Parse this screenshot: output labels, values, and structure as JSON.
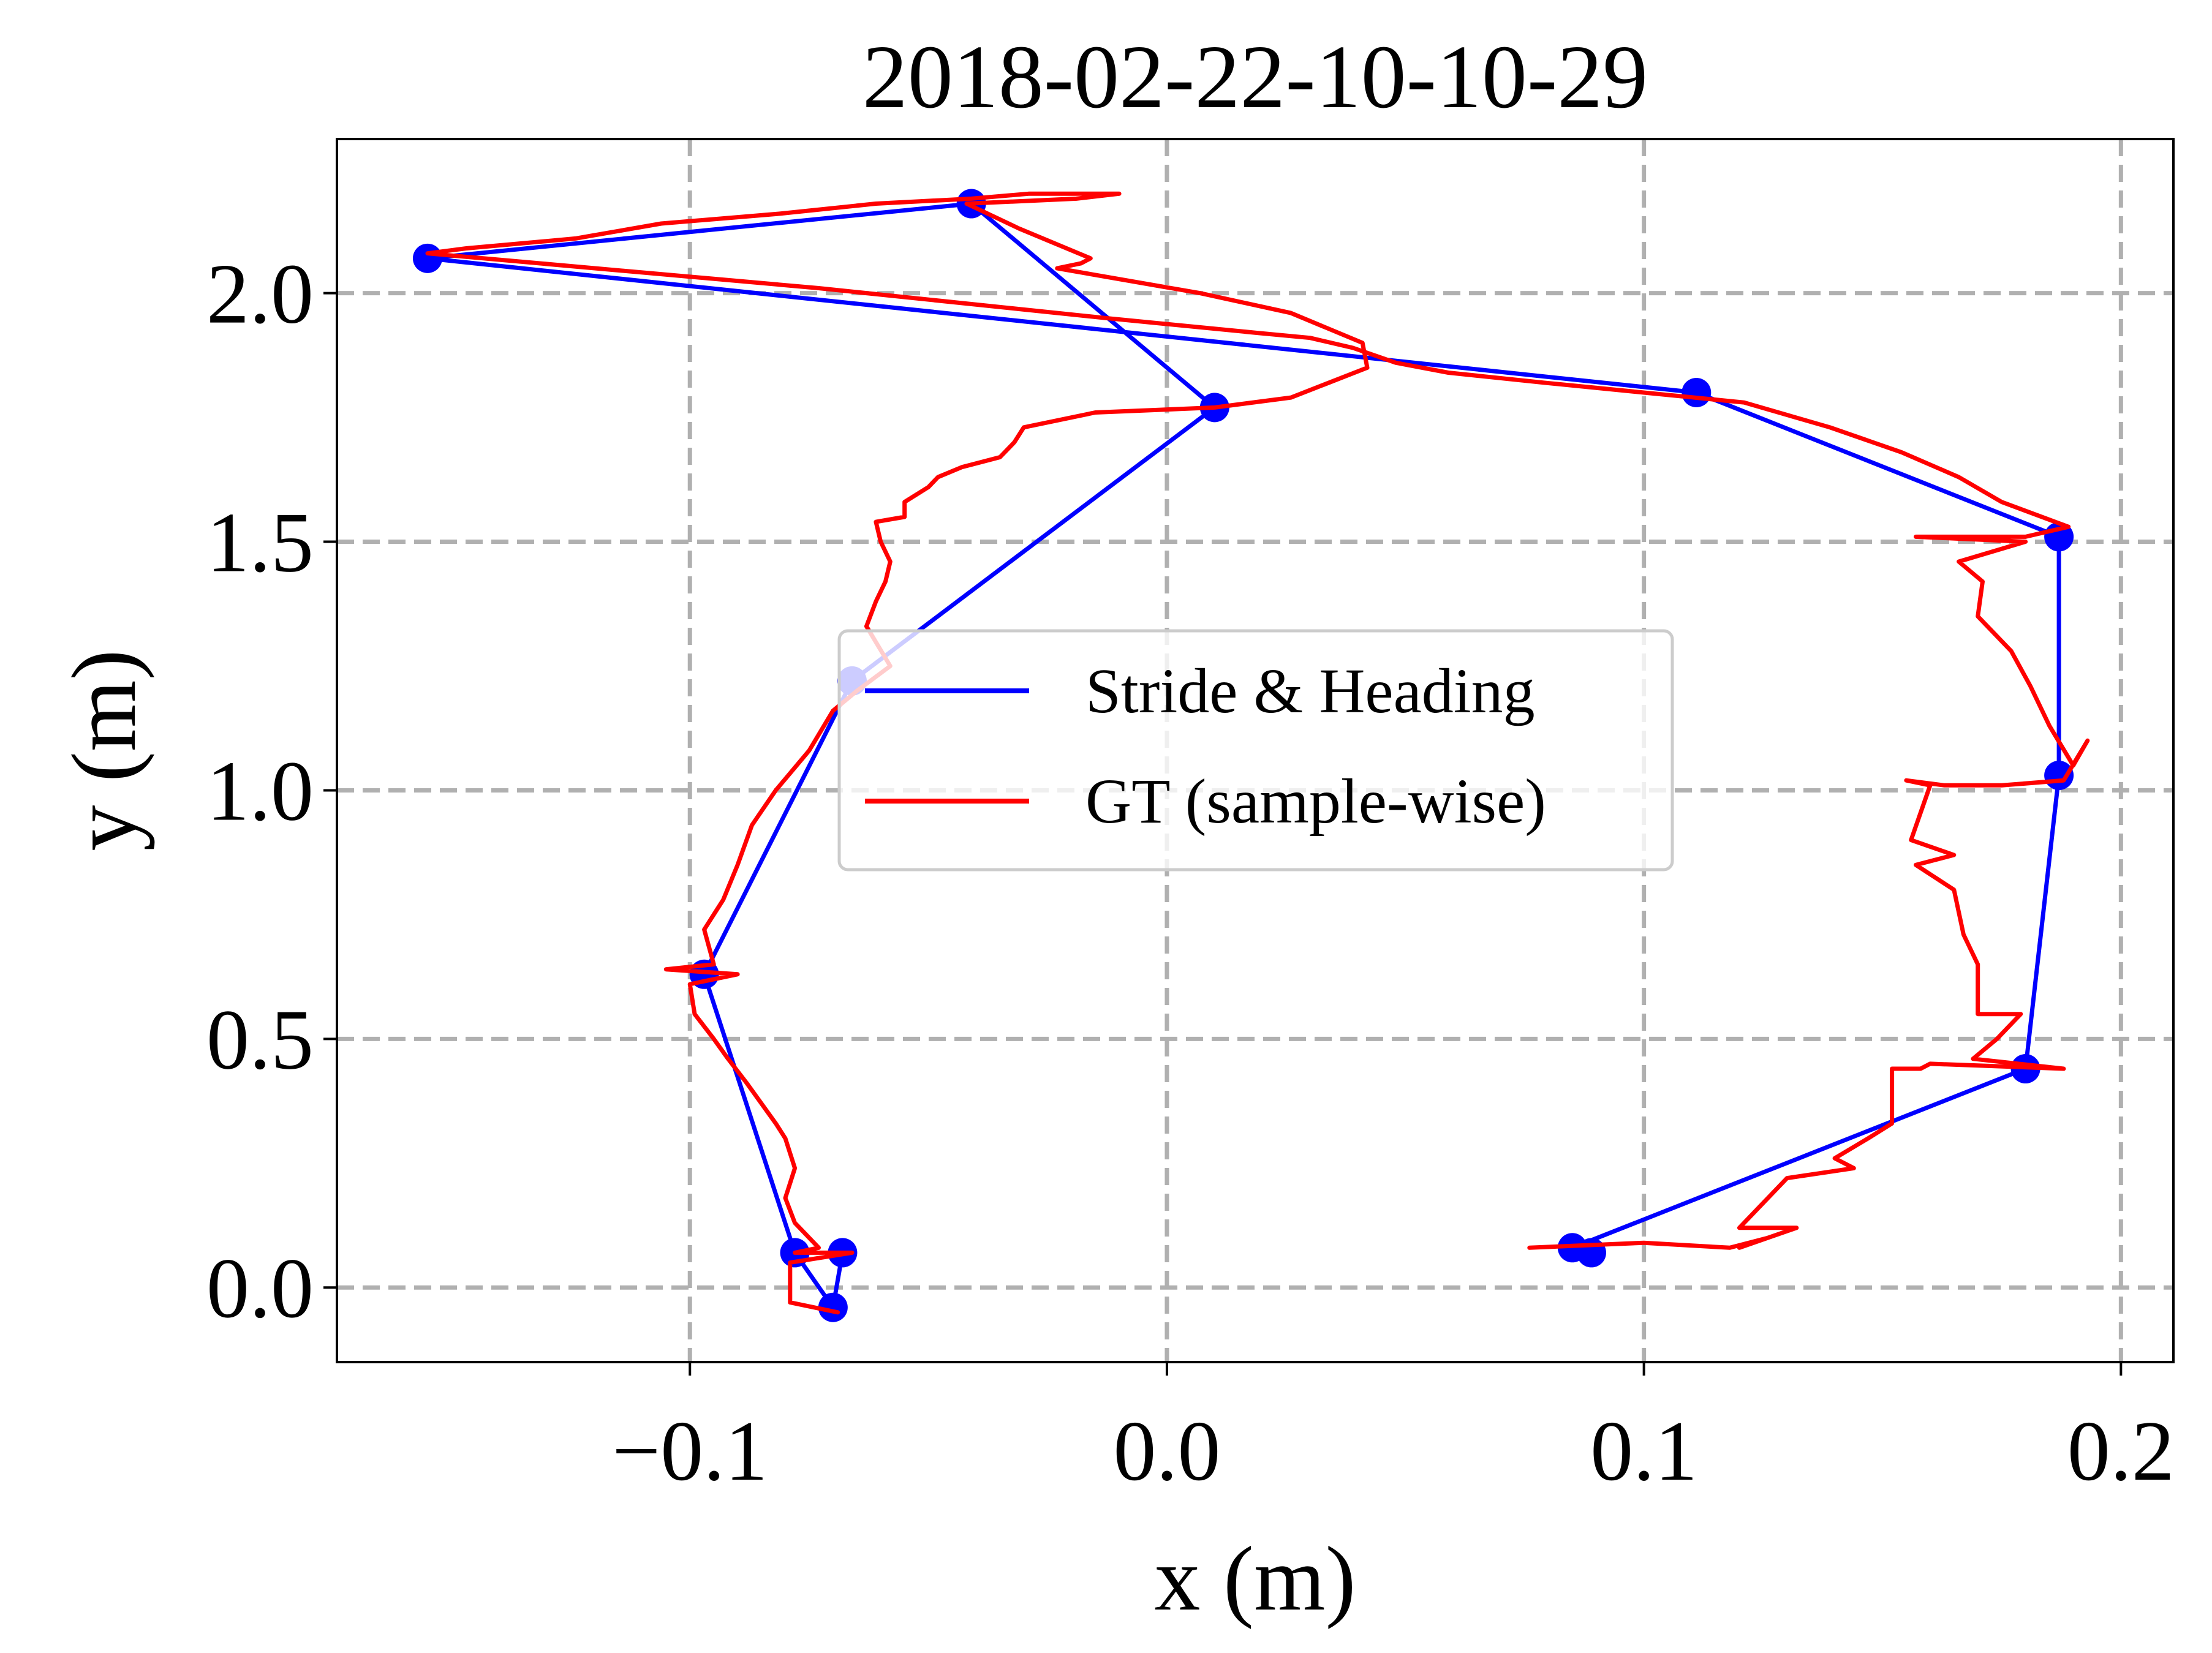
{
  "chart_data": {
    "type": "line",
    "title": "2018-02-22-10-10-29",
    "xlabel": "x (m)",
    "ylabel": "y (m)",
    "xlim": [
      -0.174,
      0.211
    ],
    "ylim": [
      -0.15,
      2.31
    ],
    "grid": true,
    "legend_position": "center",
    "x_ticks": [
      -0.1,
      0.0,
      0.1,
      0.2
    ],
    "x_tick_labels": [
      "−0.1",
      "0.0",
      "0.1",
      "0.2"
    ],
    "y_ticks": [
      0.0,
      0.5,
      1.0,
      1.5,
      2.0
    ],
    "y_tick_labels": [
      "0.0",
      "0.5",
      "1.0",
      "1.5",
      "2.0"
    ],
    "colors": {
      "stride": "#0000ff",
      "gt": "#ff0000",
      "grid": "#b0b0b0"
    },
    "series": [
      {
        "name": "Stride & Heading",
        "color": "#0000ff",
        "markers": true,
        "points": [
          [
            0.089,
            0.07
          ],
          [
            0.085,
            0.08
          ],
          [
            0.18,
            0.44
          ],
          [
            0.187,
            1.03
          ],
          [
            0.187,
            1.51
          ],
          [
            0.111,
            1.8
          ],
          [
            -0.155,
            2.07
          ],
          [
            -0.041,
            2.18
          ],
          [
            0.01,
            1.77
          ],
          [
            -0.066,
            1.22
          ],
          [
            -0.097,
            0.63
          ],
          [
            -0.078,
            0.07
          ],
          [
            -0.07,
            -0.04
          ],
          [
            -0.068,
            0.07
          ]
        ]
      },
      {
        "name": "GT (sample-wise)",
        "color": "#ff0000",
        "markers": false,
        "points": [
          [
            0.076,
            0.08
          ],
          [
            0.1,
            0.09
          ],
          [
            0.118,
            0.08
          ],
          [
            0.126,
            0.1
          ],
          [
            0.12,
            0.08
          ],
          [
            0.132,
            0.12
          ],
          [
            0.12,
            0.12
          ],
          [
            0.13,
            0.22
          ],
          [
            0.144,
            0.24
          ],
          [
            0.14,
            0.26
          ],
          [
            0.147,
            0.3
          ],
          [
            0.152,
            0.33
          ],
          [
            0.152,
            0.44
          ],
          [
            0.158,
            0.44
          ],
          [
            0.16,
            0.45
          ],
          [
            0.188,
            0.44
          ],
          [
            0.169,
            0.46
          ],
          [
            0.174,
            0.5
          ],
          [
            0.179,
            0.55
          ],
          [
            0.17,
            0.55
          ],
          [
            0.17,
            0.65
          ],
          [
            0.167,
            0.71
          ],
          [
            0.165,
            0.8
          ],
          [
            0.157,
            0.85
          ],
          [
            0.165,
            0.87
          ],
          [
            0.156,
            0.9
          ],
          [
            0.16,
            1.01
          ],
          [
            0.155,
            1.02
          ],
          [
            0.163,
            1.01
          ],
          [
            0.175,
            1.01
          ],
          [
            0.188,
            1.02
          ],
          [
            0.193,
            1.1
          ],
          [
            0.19,
            1.05
          ],
          [
            0.185,
            1.13
          ],
          [
            0.181,
            1.21
          ],
          [
            0.177,
            1.28
          ],
          [
            0.17,
            1.35
          ],
          [
            0.171,
            1.42
          ],
          [
            0.166,
            1.46
          ],
          [
            0.18,
            1.5
          ],
          [
            0.157,
            1.51
          ],
          [
            0.18,
            1.51
          ],
          [
            0.189,
            1.53
          ],
          [
            0.175,
            1.58
          ],
          [
            0.166,
            1.63
          ],
          [
            0.154,
            1.68
          ],
          [
            0.139,
            1.73
          ],
          [
            0.121,
            1.78
          ],
          [
            0.1,
            1.8
          ],
          [
            0.079,
            1.82
          ],
          [
            0.059,
            1.84
          ],
          [
            0.048,
            1.86
          ],
          [
            0.039,
            1.89
          ],
          [
            0.03,
            1.91
          ],
          [
            0.019,
            1.92
          ],
          [
            -0.013,
            1.95
          ],
          [
            -0.073,
            2.01
          ],
          [
            -0.155,
            2.08
          ],
          [
            -0.147,
            2.09
          ],
          [
            -0.124,
            2.11
          ],
          [
            -0.106,
            2.14
          ],
          [
            -0.081,
            2.16
          ],
          [
            -0.061,
            2.18
          ],
          [
            -0.041,
            2.19
          ],
          [
            -0.029,
            2.2
          ],
          [
            -0.01,
            2.2
          ],
          [
            -0.019,
            2.19
          ],
          [
            -0.042,
            2.18
          ],
          [
            -0.031,
            2.13
          ],
          [
            -0.016,
            2.07
          ],
          [
            -0.018,
            2.06
          ],
          [
            -0.023,
            2.05
          ],
          [
            0.007,
            2.0
          ],
          [
            0.026,
            1.96
          ],
          [
            0.041,
            1.9
          ],
          [
            0.042,
            1.85
          ],
          [
            0.026,
            1.79
          ],
          [
            0.01,
            1.77
          ],
          [
            -0.015,
            1.76
          ],
          [
            -0.03,
            1.73
          ],
          [
            -0.032,
            1.7
          ],
          [
            -0.035,
            1.67
          ],
          [
            -0.043,
            1.65
          ],
          [
            -0.048,
            1.63
          ],
          [
            -0.05,
            1.61
          ],
          [
            -0.055,
            1.58
          ],
          [
            -0.055,
            1.55
          ],
          [
            -0.061,
            1.54
          ],
          [
            -0.06,
            1.5
          ],
          [
            -0.058,
            1.46
          ],
          [
            -0.059,
            1.42
          ],
          [
            -0.061,
            1.38
          ],
          [
            -0.063,
            1.33
          ],
          [
            -0.058,
            1.25
          ],
          [
            -0.065,
            1.2
          ],
          [
            -0.07,
            1.16
          ],
          [
            -0.075,
            1.08
          ],
          [
            -0.082,
            1.0
          ],
          [
            -0.087,
            0.93
          ],
          [
            -0.09,
            0.85
          ],
          [
            -0.093,
            0.78
          ],
          [
            -0.097,
            0.72
          ],
          [
            -0.095,
            0.65
          ],
          [
            -0.105,
            0.64
          ],
          [
            -0.09,
            0.63
          ],
          [
            -0.1,
            0.61
          ],
          [
            -0.099,
            0.55
          ],
          [
            -0.095,
            0.5
          ],
          [
            -0.092,
            0.46
          ],
          [
            -0.088,
            0.41
          ],
          [
            -0.082,
            0.33
          ],
          [
            -0.08,
            0.3
          ],
          [
            -0.078,
            0.24
          ],
          [
            -0.08,
            0.18
          ],
          [
            -0.078,
            0.13
          ],
          [
            -0.073,
            0.08
          ],
          [
            -0.078,
            0.07
          ],
          [
            -0.072,
            0.07
          ],
          [
            -0.066,
            0.07
          ],
          [
            -0.079,
            0.05
          ],
          [
            -0.079,
            -0.03
          ],
          [
            -0.069,
            -0.05
          ]
        ]
      }
    ]
  }
}
